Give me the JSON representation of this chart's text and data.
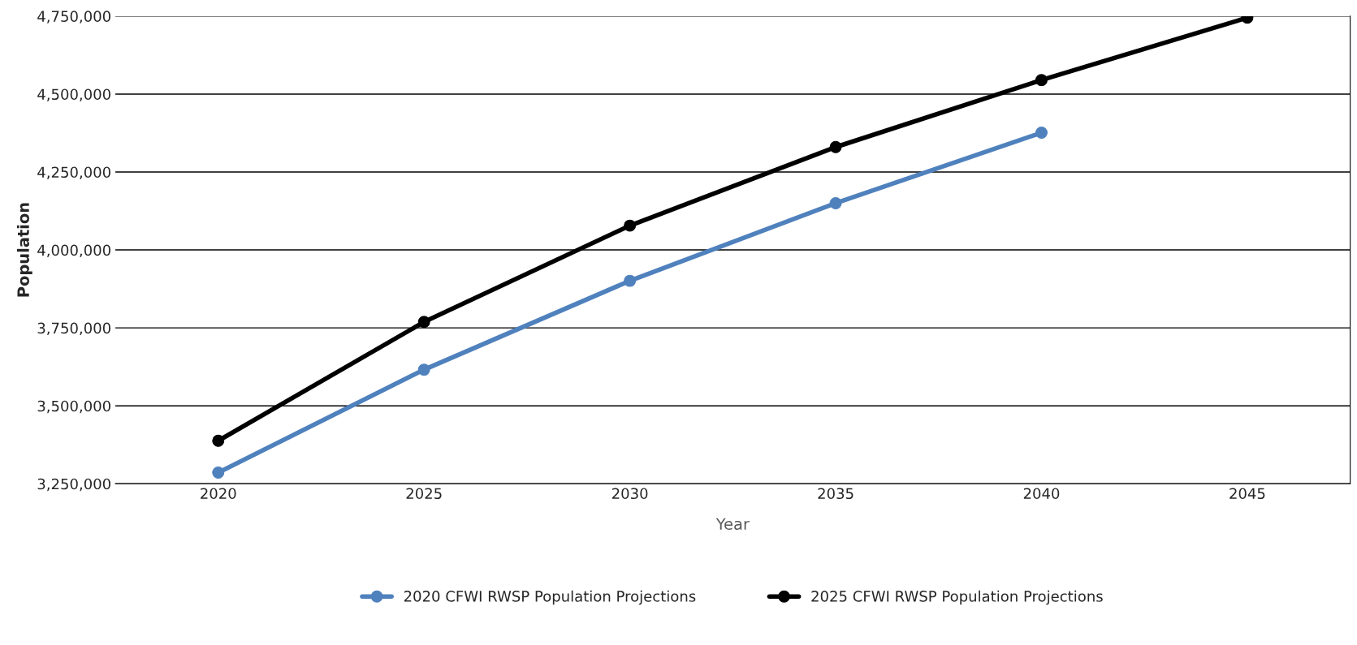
{
  "chart_data": {
    "type": "line",
    "xlabel": "Year",
    "ylabel": "Population",
    "categories": [
      "2020",
      "2025",
      "2030",
      "2035",
      "2040",
      "2045"
    ],
    "series": [
      {
        "name": "2020 CFWI RWSP Population Projections",
        "color": "#4f81bd",
        "values": [
          3286000,
          3616000,
          3901000,
          4150000,
          4376000,
          null
        ]
      },
      {
        "name": "2025 CFWI RWSP Population Projections",
        "color": "#000000",
        "values": [
          3388000,
          3769000,
          4078000,
          4330000,
          4545000,
          4745000
        ]
      }
    ],
    "ylim": [
      3250000,
      4750000
    ],
    "yticks": [
      {
        "value": 3250000,
        "label": "3,250,000"
      },
      {
        "value": 3500000,
        "label": "3,500,000"
      },
      {
        "value": 3750000,
        "label": "3,750,000"
      },
      {
        "value": 4000000,
        "label": "4,000,000"
      },
      {
        "value": 4250000,
        "label": "4,250,000"
      },
      {
        "value": 4500000,
        "label": "4,500,000"
      },
      {
        "value": 4750000,
        "label": "4,750,000"
      }
    ],
    "grid": "y",
    "legend": "bottom",
    "marker": "circle",
    "line_style": "solid"
  }
}
